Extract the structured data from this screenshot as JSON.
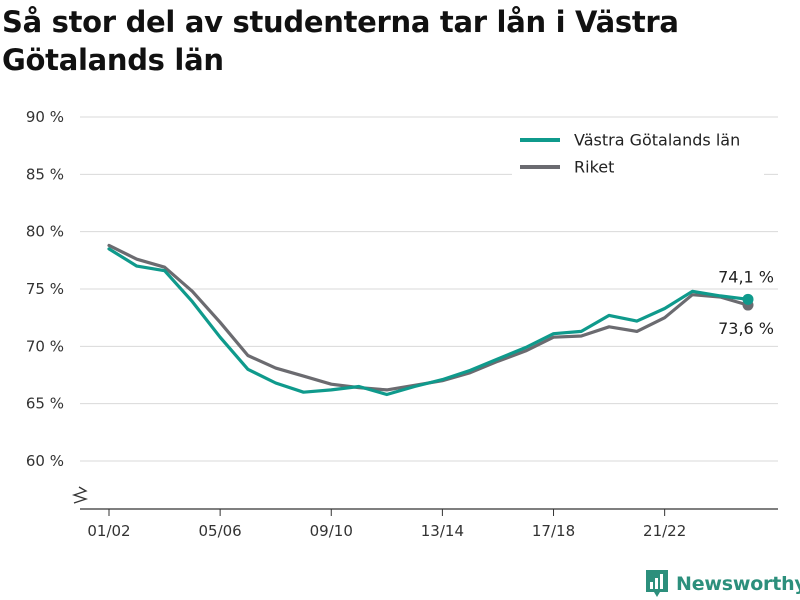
{
  "title": "Så stor del av studenterna tar lån i Västra Götalands län",
  "brand": {
    "name": "Newsworthy"
  },
  "colors": {
    "series_primary": "#0f9a8c",
    "series_secondary": "#6b6b70",
    "grid": "#d9d9d9",
    "axis": "#333333",
    "brand": "#2c8f7c"
  },
  "chart_data": {
    "type": "line",
    "title": "Så stor del av studenterna tar lån i Västra Götalands län",
    "y_unit": "%",
    "ylim": [
      60,
      90
    ],
    "y_ticks": [
      60,
      65,
      70,
      75,
      80,
      85,
      90
    ],
    "y_tick_labels": [
      "60 %",
      "65 %",
      "70 %",
      "75 %",
      "80 %",
      "85 %",
      "90 %"
    ],
    "y_axis_break": true,
    "x": [
      "01/02",
      "02/03",
      "03/04",
      "04/05",
      "05/06",
      "06/07",
      "07/08",
      "08/09",
      "09/10",
      "10/11",
      "11/12",
      "12/13",
      "13/14",
      "14/15",
      "15/16",
      "16/17",
      "17/18",
      "18/19",
      "19/20",
      "20/21",
      "21/22",
      "22/23",
      "23/24",
      "24/25"
    ],
    "x_tick_labels": [
      "01/02",
      "05/06",
      "09/10",
      "13/14",
      "17/18",
      "21/22"
    ],
    "grid": true,
    "legend": "top-right",
    "series": [
      {
        "name": "Västra Götalands län",
        "color": "#0f9a8c",
        "values": [
          78.5,
          77.0,
          76.6,
          73.9,
          70.8,
          68.0,
          66.8,
          66.0,
          66.2,
          66.5,
          65.8,
          66.5,
          67.1,
          67.9,
          68.9,
          69.9,
          71.1,
          71.3,
          72.7,
          72.2,
          73.3,
          74.8,
          74.4,
          74.1
        ],
        "end_label": "74,1 %"
      },
      {
        "name": "Riket",
        "color": "#6b6b70",
        "values": [
          78.8,
          77.6,
          76.9,
          74.8,
          72.1,
          69.2,
          68.1,
          67.4,
          66.7,
          66.4,
          66.2,
          66.6,
          67.0,
          67.7,
          68.7,
          69.6,
          70.8,
          70.9,
          71.7,
          71.3,
          72.5,
          74.5,
          74.3,
          73.6
        ],
        "end_label": "73,6 %"
      }
    ]
  }
}
